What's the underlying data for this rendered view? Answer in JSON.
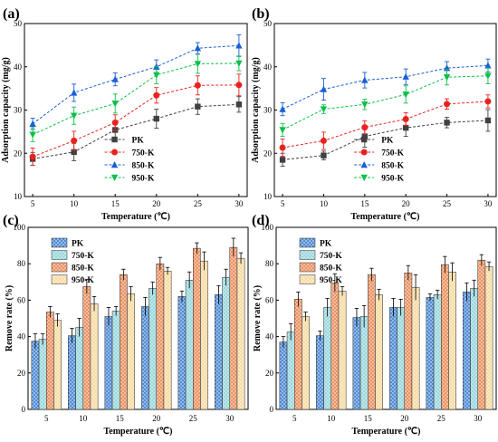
{
  "chart_data": [
    {
      "panel_label": "(a)",
      "type": "line",
      "x": [
        5,
        10,
        15,
        20,
        25,
        30
      ],
      "xlabel": "Temperature (℃)",
      "ylabel": "Adsorption capacity (mg/g)",
      "xlim": [
        4,
        31
      ],
      "ylim": [
        10,
        50
      ],
      "xticks": [
        5,
        10,
        15,
        20,
        25,
        30
      ],
      "yticks": [
        10,
        20,
        30,
        40,
        50
      ],
      "legend_position": "bottom-center",
      "series": [
        {
          "name": "PK",
          "color": "#404040",
          "marker": "square",
          "values": [
            18.7,
            20.3,
            25.4,
            28.0,
            30.8,
            31.3
          ],
          "errors": [
            1.5,
            2.0,
            2.0,
            2.2,
            1.8,
            1.8
          ]
        },
        {
          "name": "750-K",
          "color": "#e8231f",
          "marker": "circle",
          "values": [
            19.2,
            22.9,
            27.1,
            33.4,
            35.7,
            35.8
          ],
          "errors": [
            2.0,
            2.2,
            1.8,
            1.8,
            2.2,
            2.5
          ]
        },
        {
          "name": "850-K",
          "color": "#1a5fd6",
          "marker": "triangle-up",
          "values": [
            26.8,
            34.0,
            37.1,
            40.0,
            44.3,
            44.9
          ],
          "errors": [
            1.3,
            2.0,
            1.5,
            1.6,
            1.3,
            2.5
          ]
        },
        {
          "name": "950-K",
          "color": "#0cc04a",
          "marker": "triangle-down",
          "values": [
            24.3,
            28.7,
            31.5,
            38.1,
            40.7,
            40.8
          ],
          "errors": [
            1.6,
            2.0,
            2.2,
            2.0,
            2.2,
            1.7
          ]
        }
      ]
    },
    {
      "panel_label": "(b)",
      "type": "line",
      "x": [
        5,
        10,
        15,
        20,
        25,
        30
      ],
      "xlabel": "Temperature (℃)",
      "ylabel": "Adsorption capacity (mg/g)",
      "xlim": [
        4,
        31
      ],
      "ylim": [
        10,
        50
      ],
      "xticks": [
        5,
        10,
        15,
        20,
        25,
        30
      ],
      "yticks": [
        10,
        20,
        30,
        40,
        50
      ],
      "legend_position": "bottom-center",
      "series": [
        {
          "name": "PK",
          "color": "#404040",
          "marker": "square",
          "values": [
            18.5,
            19.5,
            23.9,
            25.9,
            27.1,
            27.6
          ],
          "errors": [
            1.5,
            1.0,
            2.5,
            2.0,
            1.2,
            2.5
          ]
        },
        {
          "name": "750-K",
          "color": "#e8231f",
          "marker": "circle",
          "values": [
            21.3,
            22.9,
            26.0,
            27.9,
            31.4,
            32.0
          ],
          "errors": [
            2.0,
            2.0,
            1.5,
            1.5,
            1.2,
            1.5
          ]
        },
        {
          "name": "850-K",
          "color": "#1a5fd6",
          "marker": "triangle-up",
          "values": [
            30.2,
            34.8,
            36.9,
            37.7,
            39.7,
            40.3
          ],
          "errors": [
            1.5,
            2.5,
            1.8,
            1.8,
            1.5,
            1.5
          ]
        },
        {
          "name": "950-K",
          "color": "#0cc04a",
          "marker": "triangle-down",
          "values": [
            25.4,
            30.2,
            31.3,
            33.6,
            37.6,
            37.9
          ],
          "errors": [
            1.5,
            1.0,
            1.2,
            2.0,
            1.8,
            1.8
          ]
        }
      ]
    },
    {
      "panel_label": "(c)",
      "type": "bar",
      "categories": [
        "5",
        "10",
        "15",
        "20",
        "25",
        "30"
      ],
      "xlabel": "Temperature (℃)",
      "ylabel": "Remove rate (%)",
      "ylim": [
        0,
        100
      ],
      "yticks": [
        0,
        20,
        40,
        60,
        80,
        100
      ],
      "legend_position": "top-left",
      "series": [
        {
          "name": "PK",
          "color": "#3f7fd0",
          "values": [
            37.5,
            40.5,
            51.0,
            56.5,
            62.0,
            63.0
          ],
          "errors": [
            4.0,
            4.0,
            5.0,
            5.0,
            3.0,
            5.0
          ]
        },
        {
          "name": "750-K",
          "color": "#8fd2d8",
          "values": [
            38.5,
            45.0,
            54.0,
            66.5,
            71.0,
            72.5
          ],
          "errors": [
            3.0,
            5.0,
            2.5,
            3.5,
            4.5,
            4.5
          ]
        },
        {
          "name": "850-K",
          "color": "#e88752",
          "values": [
            53.5,
            67.5,
            74.0,
            80.0,
            88.5,
            89.0
          ],
          "errors": [
            3.0,
            4.0,
            3.0,
            3.5,
            3.0,
            5.0
          ]
        },
        {
          "name": "950-K",
          "color": "#f6d79a",
          "values": [
            49.0,
            58.0,
            63.5,
            76.0,
            81.5,
            83.0
          ],
          "errors": [
            3.5,
            4.0,
            4.0,
            2.0,
            5.0,
            3.0
          ]
        }
      ]
    },
    {
      "panel_label": "(d)",
      "type": "bar",
      "categories": [
        "5",
        "10",
        "15",
        "20",
        "25",
        "30"
      ],
      "xlabel": "Temperature (℃)",
      "ylabel": "Remove rate (%)",
      "ylim": [
        0,
        100
      ],
      "yticks": [
        0,
        20,
        40,
        60,
        80,
        100
      ],
      "legend_position": "top-left",
      "series": [
        {
          "name": "PK",
          "color": "#3f7fd0",
          "values": [
            37.0,
            40.5,
            50.5,
            56.0,
            61.5,
            64.5
          ],
          "errors": [
            3.0,
            2.5,
            5.0,
            5.0,
            2.0,
            5.0
          ]
        },
        {
          "name": "750-K",
          "color": "#8fd2d8",
          "values": [
            42.5,
            56.0,
            51.0,
            56.0,
            63.0,
            66.5
          ],
          "errors": [
            4.5,
            5.0,
            6.0,
            4.5,
            2.5,
            4.5
          ]
        },
        {
          "name": "850-K",
          "color": "#e88752",
          "values": [
            60.5,
            69.5,
            74.0,
            75.0,
            79.5,
            82.0
          ],
          "errors": [
            4.0,
            5.0,
            3.5,
            4.0,
            4.5,
            3.0
          ]
        },
        {
          "name": "950-K",
          "color": "#f6d79a",
          "values": [
            51.0,
            65.0,
            63.0,
            67.0,
            75.5,
            78.5
          ],
          "errors": [
            2.5,
            2.5,
            3.0,
            7.0,
            5.0,
            2.5
          ]
        }
      ]
    }
  ]
}
